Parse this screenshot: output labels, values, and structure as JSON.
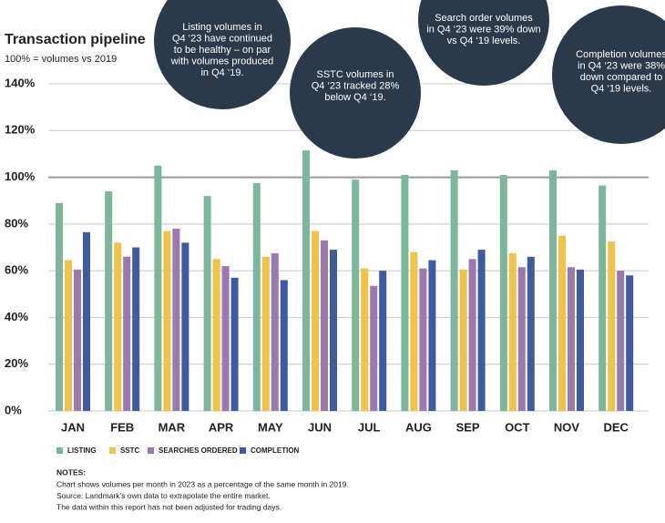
{
  "chart_data": {
    "type": "bar",
    "title": "Transaction pipeline",
    "subtitle": "100% = volumes vs 2019",
    "categories": [
      "JAN",
      "FEB",
      "MAR",
      "APR",
      "MAY",
      "JUN",
      "JUL",
      "AUG",
      "SEP",
      "OCT",
      "NOV",
      "DEC"
    ],
    "series": [
      {
        "name": "LISTING",
        "color": "#7bb69d",
        "values": [
          89,
          94,
          105,
          92,
          97.5,
          111.5,
          99,
          101,
          103,
          101,
          103,
          96.5
        ]
      },
      {
        "name": "SSTC",
        "color": "#f0c246",
        "values": [
          64.5,
          72,
          77,
          65,
          66,
          77,
          61,
          68,
          60.5,
          67.5,
          75,
          72.5
        ]
      },
      {
        "name": "SEARCHES ORDERED",
        "color": "#9b79b0",
        "values": [
          60.5,
          66,
          78,
          62,
          67.5,
          73,
          53.5,
          61,
          65,
          61.5,
          61.5,
          60
        ]
      },
      {
        "name": "COMPLETION",
        "color": "#3e5aa0",
        "values": [
          76.5,
          70,
          72,
          57,
          56,
          69,
          60,
          64.5,
          69,
          66,
          60.5,
          58
        ]
      }
    ],
    "ylim": [
      0,
      140
    ],
    "yticks": [
      {
        "value": 0,
        "label": "0%"
      },
      {
        "value": 20,
        "label": "20%"
      },
      {
        "value": 40,
        "label": "40%"
      },
      {
        "value": 60,
        "label": "60%"
      },
      {
        "value": 80,
        "label": "80%"
      },
      {
        "value": 100,
        "label": "100%"
      },
      {
        "value": 120,
        "label": "120%"
      },
      {
        "value": 140,
        "label": "140%"
      }
    ],
    "grid": true,
    "annotations": [
      [
        "Listing volumes in",
        "Q4 ‘23 have continued",
        "to be healthy – on par",
        "with volumes produced",
        "in Q4 ‘19."
      ],
      [
        "SSTC volumes in",
        "Q4 ‘23 tracked 28%",
        "below Q4 ‘19."
      ],
      [
        "Search order volumes",
        "in Q4 ‘23 were 39% down",
        "vs Q4 ‘19 levels."
      ],
      [
        "Completion volumes",
        "in Q4 ‘23 were 38%",
        "down compared to",
        "Q4 ‘19 levels."
      ]
    ],
    "notes": {
      "heading": "NOTES:",
      "lines": [
        "Chart shows volumes per month in 2023 as a percentage of the same month in 2019.",
        "Source: Landmark’s own data to extrapolate the entire market.",
        "The data within this report has not been adjusted for trading days."
      ]
    }
  }
}
